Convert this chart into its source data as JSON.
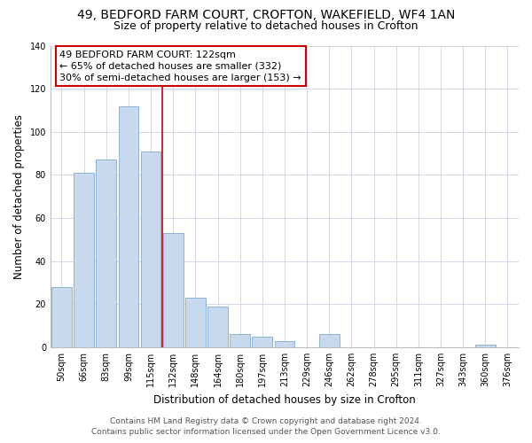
{
  "title": "49, BEDFORD FARM COURT, CROFTON, WAKEFIELD, WF4 1AN",
  "subtitle": "Size of property relative to detached houses in Crofton",
  "xlabel": "Distribution of detached houses by size in Crofton",
  "ylabel": "Number of detached properties",
  "bar_labels": [
    "50sqm",
    "66sqm",
    "83sqm",
    "99sqm",
    "115sqm",
    "132sqm",
    "148sqm",
    "164sqm",
    "180sqm",
    "197sqm",
    "213sqm",
    "229sqm",
    "246sqm",
    "262sqm",
    "278sqm",
    "295sqm",
    "311sqm",
    "327sqm",
    "343sqm",
    "360sqm",
    "376sqm"
  ],
  "bar_values": [
    28,
    81,
    87,
    112,
    91,
    53,
    23,
    19,
    6,
    5,
    3,
    0,
    6,
    0,
    0,
    0,
    0,
    0,
    0,
    1,
    0
  ],
  "bar_color": "#c8d9ee",
  "bar_edge_color": "#8db4d8",
  "vline_x": 4.5,
  "vline_color": "#cc0000",
  "annotation_line1": "49 BEDFORD FARM COURT: 122sqm",
  "annotation_line2": "← 65% of detached houses are smaller (332)",
  "annotation_line3": "30% of semi-detached houses are larger (153) →",
  "annotation_box_color": "#ffffff",
  "annotation_box_edge": "#cc0000",
  "ylim": [
    0,
    140
  ],
  "yticks": [
    0,
    20,
    40,
    60,
    80,
    100,
    120,
    140
  ],
  "footer_line1": "Contains HM Land Registry data © Crown copyright and database right 2024.",
  "footer_line2": "Contains public sector information licensed under the Open Government Licence v3.0.",
  "bg_color": "#ffffff",
  "grid_color": "#d0d8e8",
  "title_fontsize": 10,
  "subtitle_fontsize": 9,
  "axis_label_fontsize": 8.5,
  "tick_fontsize": 7,
  "annotation_fontsize": 8,
  "footer_fontsize": 6.5
}
